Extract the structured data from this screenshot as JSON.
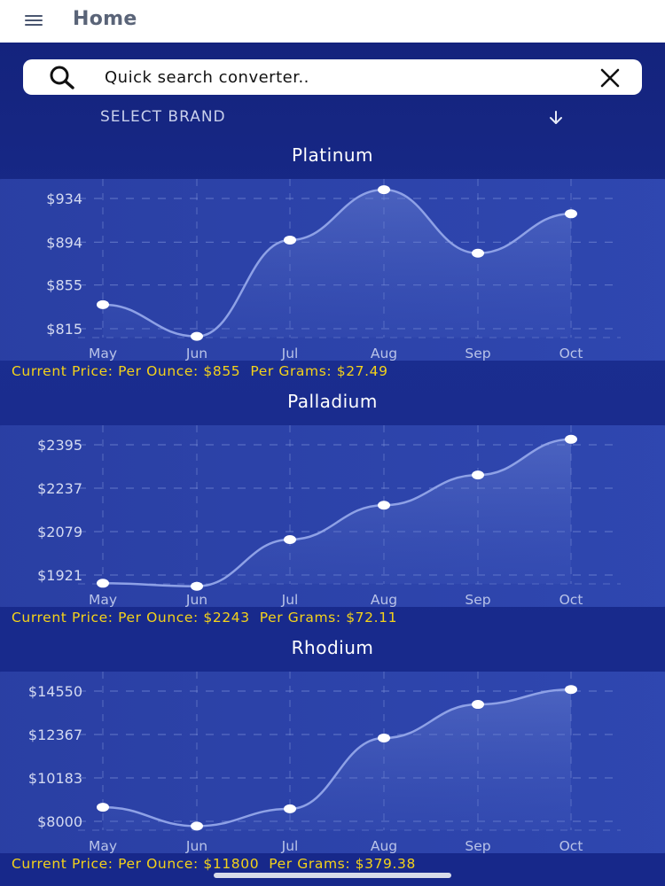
{
  "header": {
    "title": "Home",
    "menu_icon": "hamburger-menu-icon"
  },
  "search": {
    "placeholder": "Quick search converter..",
    "value": ""
  },
  "select_brand": {
    "label": "SELECT BRAND",
    "arrow_icon": "arrow-down-icon"
  },
  "colors": {
    "background": "#14237e",
    "accent_text": "#f4d21a",
    "card": "#2b42a8"
  },
  "charts": [
    {
      "title": "Platinum",
      "price_prefix": "Current Price: Per Ounce: ",
      "per_ounce": "$855",
      "per_grams_prefix": "Per Grams: ",
      "per_grams": "$27.49"
    },
    {
      "title": "Palladium",
      "price_prefix": "Current Price: Per Ounce: ",
      "per_ounce": "$2243",
      "per_grams_prefix": "Per Grams: ",
      "per_grams": "$72.11"
    },
    {
      "title": "Rhodium",
      "price_prefix": "Current Price: Per Ounce: ",
      "per_ounce": "$11800",
      "per_grams_prefix": "Per Grams: ",
      "per_grams": "$379.38"
    }
  ],
  "chart_data": [
    {
      "type": "area",
      "title": "Platinum",
      "categories": [
        "May",
        "Jun",
        "Jul",
        "Aug",
        "Sep",
        "Oct"
      ],
      "values": [
        837,
        808,
        896,
        942,
        884,
        920
      ],
      "y_ticks": [
        "$934",
        "$894",
        "$855",
        "$815"
      ],
      "y_tick_values": [
        934,
        894,
        855,
        815
      ],
      "grid": true
    },
    {
      "type": "area",
      "title": "Palladium",
      "categories": [
        "May",
        "Jun",
        "Jul",
        "Aug",
        "Sep",
        "Oct"
      ],
      "values": [
        1891,
        1880,
        2050,
        2175,
        2285,
        2415
      ],
      "y_ticks": [
        "$2395",
        "$2237",
        "$2079",
        "$1921"
      ],
      "y_tick_values": [
        2395,
        2237,
        2079,
        1921
      ],
      "grid": true
    },
    {
      "type": "area",
      "title": "Rhodium",
      "categories": [
        "May",
        "Jun",
        "Jul",
        "Aug",
        "Sep",
        "Oct"
      ],
      "values": [
        8710,
        7760,
        8630,
        12190,
        13880,
        14630
      ],
      "y_ticks": [
        "$14550",
        "$12367",
        "$10183",
        "$8000"
      ],
      "y_tick_values": [
        14550,
        12367,
        10183,
        8000
      ],
      "grid": true
    }
  ]
}
